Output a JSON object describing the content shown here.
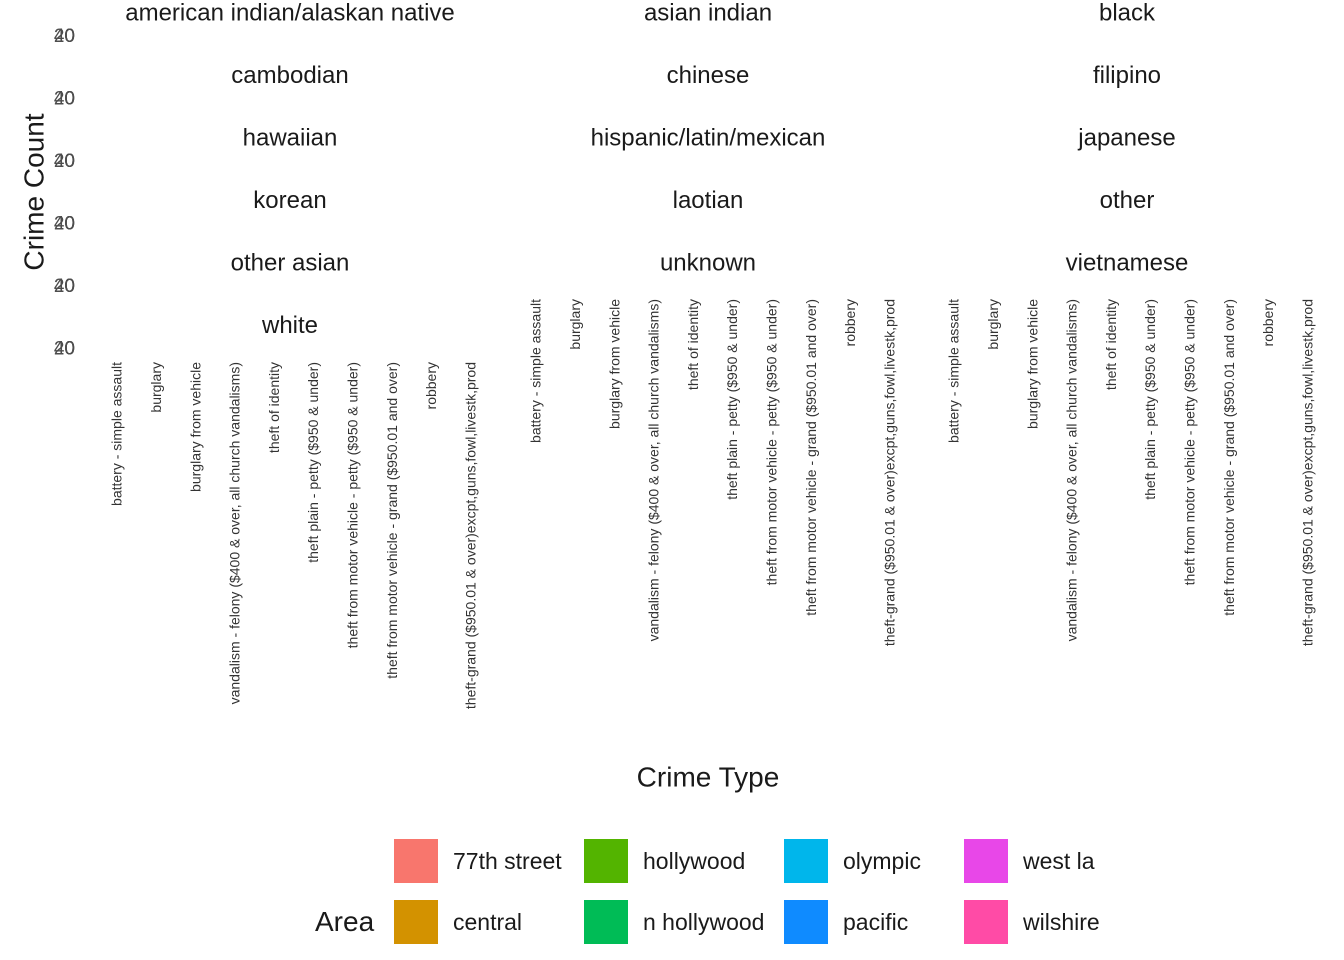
{
  "chart_data": {
    "type": "bar",
    "title": "",
    "xlabel": "Crime Type",
    "ylabel": "Crime Count",
    "facet_labels": [
      "american indian/alaskan native",
      "asian indian",
      "black",
      "cambodian",
      "chinese",
      "filipino",
      "hawaiian",
      "hispanic/latin/mexican",
      "japanese",
      "korean",
      "laotian",
      "other",
      "other asian",
      "unknown",
      "vietnamese",
      "white"
    ],
    "y_tick_labels": [
      "0",
      "20",
      "40"
    ],
    "ylim": [
      0,
      40
    ],
    "categories": [
      "battery - simple assault",
      "burglary",
      "burglary from vehicle",
      "vandalism - felony ($400 & over, all church vandalisms)",
      "theft of identity",
      "theft plain - petty ($950 & under)",
      "theft from motor vehicle - petty ($950 & under)",
      "theft from motor vehicle - grand ($950.01 and over)",
      "robbery",
      "theft-grand ($950.01 & over)excpt,guns,fowl,livestk,prod"
    ],
    "legend": {
      "title": "Area",
      "entries": [
        {
          "name": "77th street",
          "color": "#F8766D"
        },
        {
          "name": "central",
          "color": "#D39200"
        },
        {
          "name": "hollywood",
          "color": "#53B400"
        },
        {
          "name": "n hollywood",
          "color": "#00BC56"
        },
        {
          "name": "olympic",
          "color": "#00B6EB"
        },
        {
          "name": "pacific",
          "color": "#0F8BFF"
        },
        {
          "name": "west la",
          "color": "#E847E8"
        },
        {
          "name": "wilshire",
          "color": "#FF4BA6"
        }
      ]
    },
    "grid": false,
    "legend_position": "bottom"
  }
}
